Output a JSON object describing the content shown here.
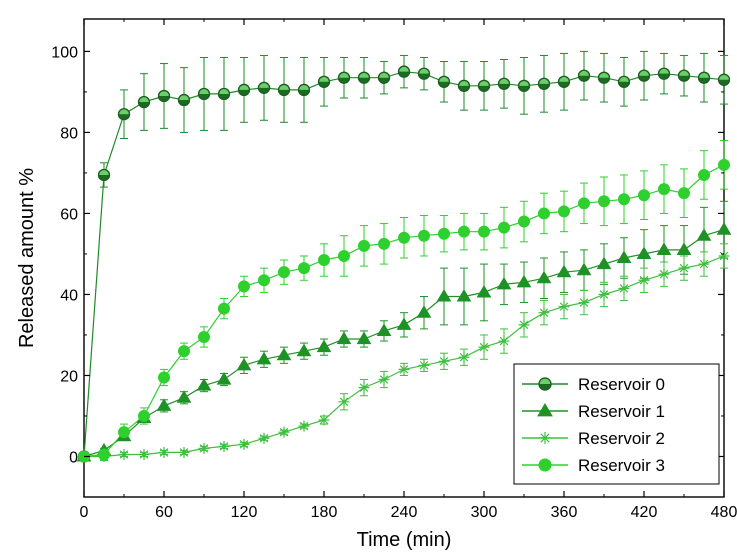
{
  "chart_data": {
    "type": "line",
    "title": "",
    "xlabel": "Time (min)",
    "ylabel": "Released amount %",
    "xlim": [
      0,
      480
    ],
    "ylim": [
      -10,
      108
    ],
    "x_ticks": [
      0,
      60,
      120,
      180,
      240,
      300,
      360,
      420,
      480
    ],
    "y_ticks": [
      0,
      20,
      40,
      60,
      80,
      100
    ],
    "grid": false,
    "legend_position": "bottom-right",
    "x": [
      0,
      15,
      30,
      45,
      60,
      75,
      90,
      105,
      120,
      135,
      150,
      165,
      180,
      195,
      210,
      225,
      240,
      255,
      270,
      285,
      300,
      315,
      330,
      345,
      360,
      375,
      390,
      405,
      420,
      435,
      450,
      465,
      480
    ],
    "series": [
      {
        "name": "Reservoir 0",
        "marker": "half-filled-circle",
        "color": "#1e8a2a",
        "values": [
          0,
          69.5,
          84.5,
          87.5,
          89,
          88,
          89.5,
          89.5,
          90.5,
          91,
          90.5,
          90.5,
          92.5,
          93.5,
          93.5,
          93.5,
          95,
          94.5,
          92.5,
          91.5,
          91.5,
          92,
          91.5,
          92,
          92.5,
          94,
          93.5,
          92.5,
          94,
          94.5,
          94,
          93.5,
          93
        ],
        "errors": [
          0,
          3,
          6,
          7,
          8,
          8,
          9,
          9,
          8,
          8,
          8,
          8,
          6,
          5,
          5,
          4,
          4,
          4,
          5,
          6,
          6,
          6,
          7,
          7,
          7,
          6,
          6,
          6,
          6,
          5,
          5,
          6,
          6
        ]
      },
      {
        "name": "Reservoir 1",
        "marker": "triangle",
        "color": "#1f9226",
        "values": [
          0,
          1.5,
          5,
          9.5,
          12.5,
          14.5,
          17.5,
          19,
          22.5,
          24,
          25,
          26,
          27,
          29,
          29,
          31,
          32.5,
          35.5,
          39.5,
          39.5,
          40.5,
          42.5,
          43,
          44,
          45.5,
          46,
          47.5,
          49,
          50,
          51,
          51,
          54.5,
          56
        ],
        "errors": [
          0,
          0.5,
          1,
          1,
          1.5,
          1.5,
          1.5,
          1.5,
          2,
          2,
          2,
          2,
          2,
          2,
          2,
          2.5,
          3,
          4,
          7,
          7,
          7,
          5,
          5,
          5,
          5,
          5,
          5,
          5,
          6,
          6,
          6,
          7,
          7
        ]
      },
      {
        "name": "Reservoir 2",
        "marker": "star",
        "color": "#3fbf3f",
        "values": [
          0,
          0,
          0.5,
          0.5,
          1,
          1,
          2,
          2.5,
          3,
          4.5,
          6,
          7.5,
          9,
          13.5,
          17,
          19,
          21.5,
          22.5,
          23.5,
          24.5,
          27,
          28.5,
          32.5,
          35.5,
          37,
          38,
          40,
          41.5,
          43.5,
          45,
          46.5,
          47.5,
          49.5
        ],
        "errors": [
          0,
          0,
          0.5,
          0.5,
          0.5,
          0.5,
          0.5,
          0.5,
          0.5,
          0.5,
          0.5,
          0.5,
          1,
          2,
          2,
          2,
          1.5,
          1.5,
          2,
          2,
          3,
          3,
          3,
          3,
          3,
          3,
          3,
          3,
          3,
          3,
          3,
          3,
          3
        ]
      },
      {
        "name": "Reservoir 3",
        "marker": "circle",
        "color": "#2ed02e",
        "values": [
          0,
          0.5,
          6,
          10,
          19.5,
          26,
          29.5,
          36.5,
          42,
          43.5,
          45.5,
          46.5,
          48.5,
          49.5,
          52,
          52.5,
          54,
          54.5,
          55,
          55.5,
          55.5,
          56.5,
          58,
          60,
          60.5,
          62.5,
          63,
          63.5,
          64.5,
          66,
          65,
          69.5,
          72
        ],
        "errors": [
          0,
          1.5,
          2,
          2,
          2,
          2,
          2.5,
          2.5,
          2.5,
          3,
          3,
          3,
          4,
          5,
          5,
          5,
          5,
          5,
          4.5,
          4.5,
          4.5,
          5,
          5,
          5,
          5,
          5,
          6,
          6,
          6,
          6,
          6,
          6,
          6
        ]
      }
    ]
  }
}
